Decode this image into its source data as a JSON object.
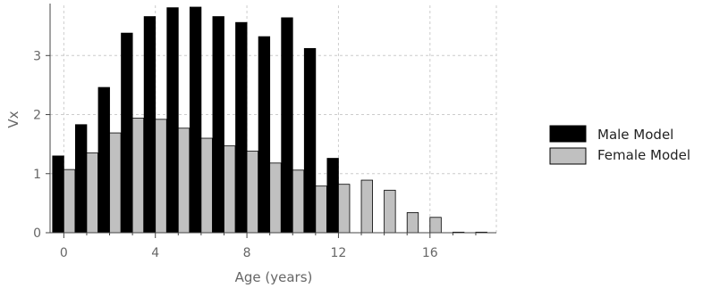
{
  "chart_data": {
    "type": "bar",
    "title": "",
    "xlabel": "Age (years)",
    "ylabel": "Vx",
    "xlim": [
      -0.6,
      18.9
    ],
    "ylim": [
      0,
      3.85
    ],
    "xticks": [
      0,
      4,
      8,
      12,
      16
    ],
    "yticks": [
      0,
      1,
      2,
      3
    ],
    "grid": true,
    "legend_position": "right",
    "x": [
      0,
      1,
      2,
      3,
      4,
      5,
      6,
      7,
      8,
      9,
      10,
      11,
      12,
      13,
      14,
      15,
      16,
      17,
      18
    ],
    "series": [
      {
        "name": "Male Model",
        "color": "#000000",
        "values": [
          1.3,
          1.83,
          2.46,
          3.38,
          3.66,
          3.81,
          3.82,
          3.66,
          3.56,
          3.32,
          3.64,
          3.12,
          1.26,
          null,
          null,
          null,
          null,
          null,
          null
        ]
      },
      {
        "name": "Female Model",
        "color": "#c0c0c0",
        "values": [
          1.07,
          1.35,
          1.69,
          1.94,
          1.92,
          1.77,
          1.6,
          1.47,
          1.38,
          1.18,
          1.06,
          0.79,
          0.82,
          0.89,
          0.72,
          0.34,
          0.26,
          0.01,
          0.01
        ]
      }
    ]
  }
}
